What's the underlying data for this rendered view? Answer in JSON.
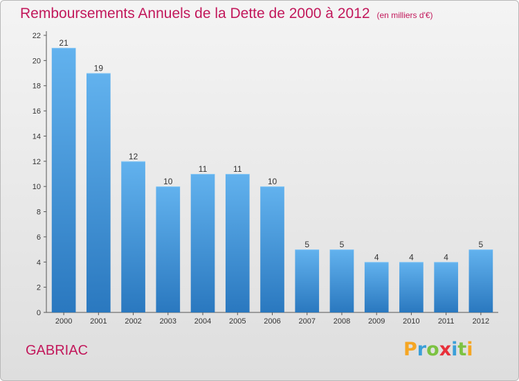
{
  "header": {
    "title": "Remboursements Annuels de la Dette de 2000 à 2012",
    "unit": "(en milliers d'€)"
  },
  "footer": {
    "city": "GABRIAC",
    "logo": {
      "text": "Proxiti",
      "letters": [
        "P",
        "r",
        "o",
        "x",
        "i",
        "t",
        "i"
      ],
      "colors": [
        "#f5a623",
        "#3b9fd8",
        "#7cc242",
        "#e8303a",
        "#3b9fd8",
        "#7cc242",
        "#f5a623"
      ]
    }
  },
  "chart_data": {
    "type": "bar",
    "title": "Remboursements Annuels de la Dette de 2000 à 2012",
    "categories": [
      "2000",
      "2001",
      "2002",
      "2003",
      "2004",
      "2005",
      "2006",
      "2007",
      "2008",
      "2009",
      "2010",
      "2011",
      "2012"
    ],
    "values": [
      21,
      19,
      12,
      10,
      11,
      11,
      10,
      5,
      5,
      4,
      4,
      4,
      5
    ],
    "data_labels": [
      "21",
      "19",
      "12",
      "10",
      "11",
      "11",
      "10",
      "5",
      "5",
      "4",
      "4",
      "4",
      "5"
    ],
    "ylim": [
      0,
      22
    ],
    "yticks": [
      0,
      2,
      4,
      6,
      8,
      10,
      12,
      14,
      16,
      18,
      20,
      22
    ],
    "grid": false,
    "bar_color": "#3b8fd6",
    "bar_color_light": "#62b2ee",
    "bar_color_dark": "#2a78bf"
  }
}
